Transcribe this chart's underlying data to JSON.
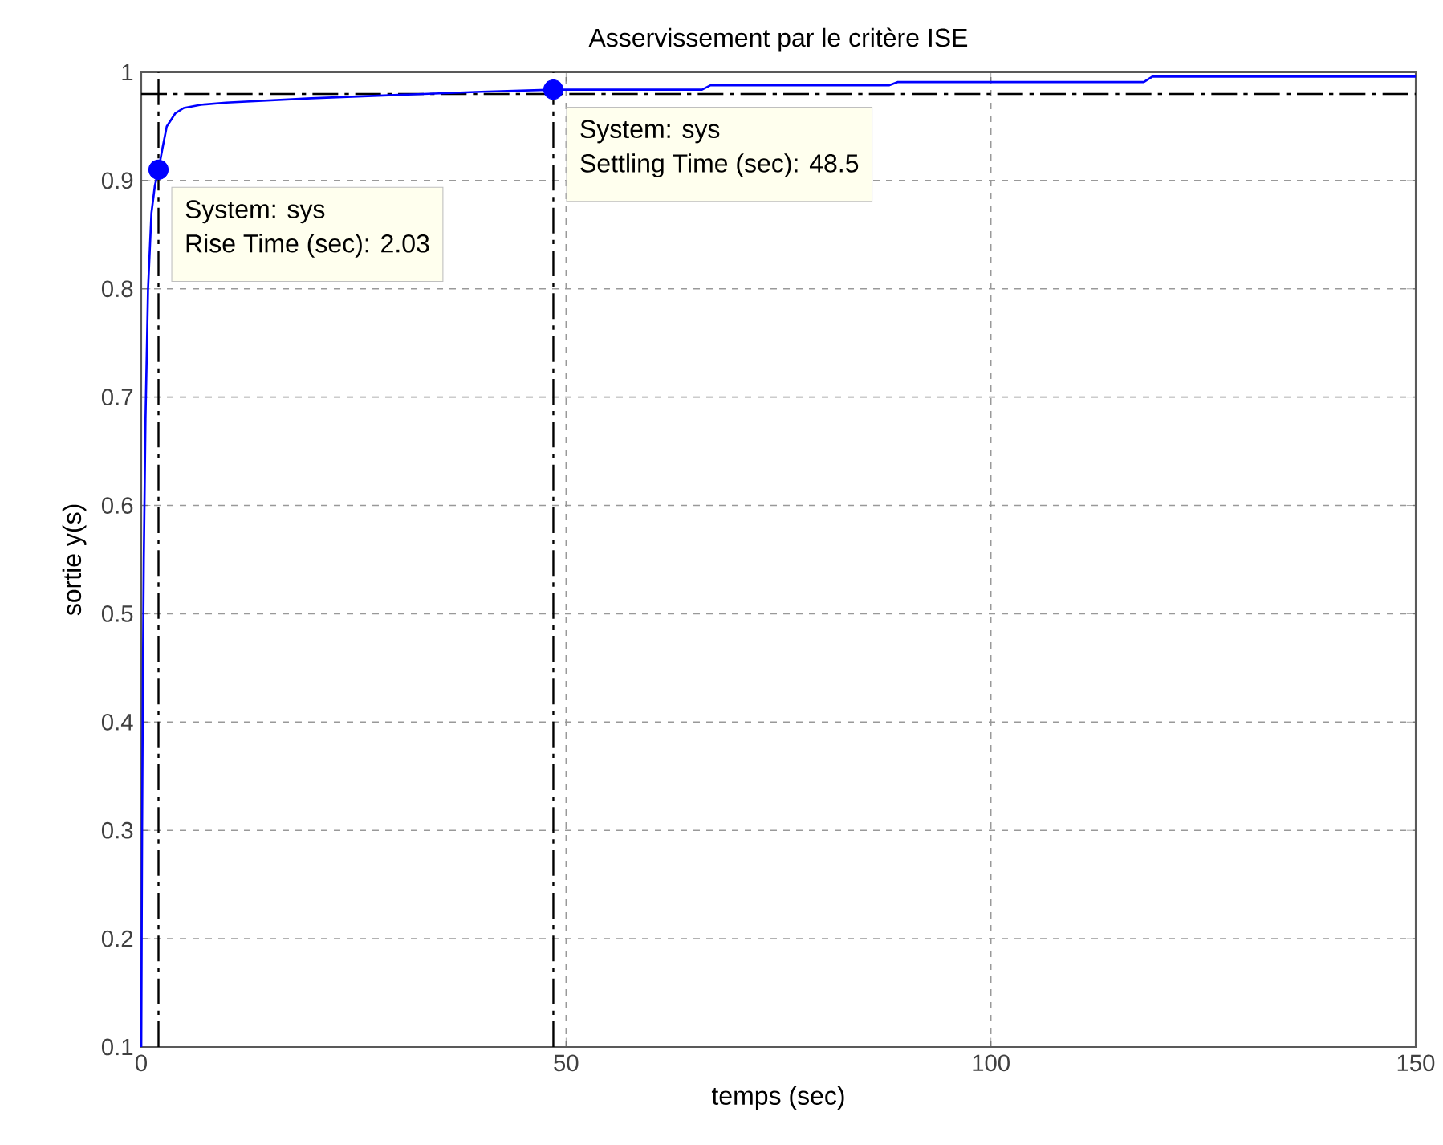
{
  "chart_data": {
    "type": "line",
    "title": "Asservissement par le critère ISE",
    "xlabel": "temps (sec)",
    "ylabel": "sortie y(s)",
    "series": [
      {
        "color": "#0000ff",
        "x": [
          0,
          0.1,
          0.2,
          0.3,
          0.5,
          0.8,
          1.2,
          1.6,
          2.03,
          2.5,
          3,
          4,
          5,
          7,
          10,
          15,
          20,
          30,
          40,
          48.5,
          55,
          66,
          67,
          88,
          89,
          118,
          119,
          150
        ],
        "values": [
          0.1,
          0.3,
          0.45,
          0.55,
          0.68,
          0.8,
          0.87,
          0.895,
          0.91,
          0.93,
          0.95,
          0.962,
          0.967,
          0.97,
          0.972,
          0.974,
          0.976,
          0.979,
          0.982,
          0.984,
          0.984,
          0.984,
          0.988,
          0.988,
          0.991,
          0.991,
          0.996,
          0.996
        ]
      },
      {
        "type": "scatter",
        "color": "#0000ff",
        "marker": "circle",
        "x": [
          2.03,
          48.5
        ],
        "values": [
          0.91,
          0.984
        ]
      }
    ],
    "xlim": [
      0,
      150
    ],
    "ylim": [
      0.1,
      1
    ],
    "xticks": [
      0,
      50,
      100,
      150
    ],
    "yticks": [
      0.1,
      0.2,
      0.3,
      0.4,
      0.5,
      0.6,
      0.7,
      0.8,
      0.9,
      1
    ],
    "grid": true,
    "ref_lines": [
      {
        "axis": "x",
        "value": 2.03,
        "color": "#000000",
        "line_style": "dashdot"
      },
      {
        "axis": "x",
        "value": 48.5,
        "color": "#000000",
        "line_style": "dashdot"
      },
      {
        "axis": "y",
        "value": 0.98,
        "color": "#000000",
        "line_style": "dashdot"
      }
    ],
    "annotations": [
      "System: sys",
      "Rise Time (sec): 2.03",
      "System: sys",
      "Settling Time (sec): 48.5"
    ]
  }
}
